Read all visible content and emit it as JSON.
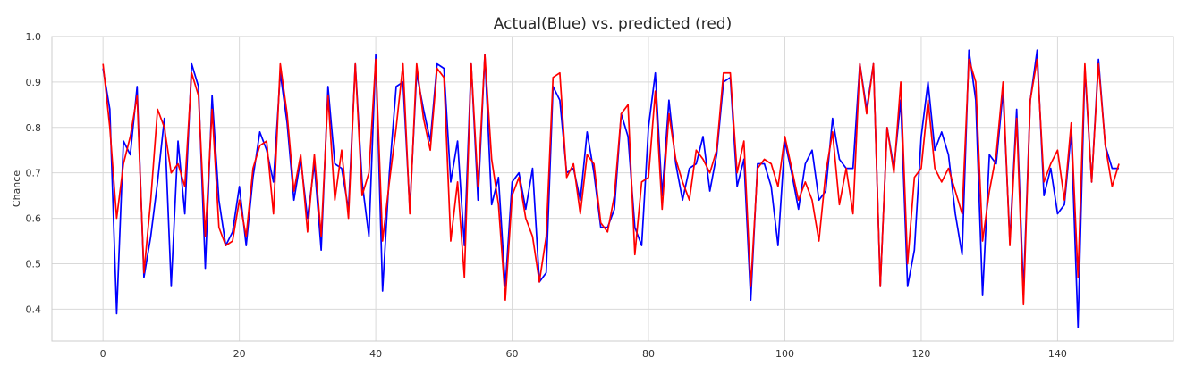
{
  "chart_data": {
    "type": "line",
    "title": "Actual(Blue) vs. predicted (red)",
    "xlabel": "",
    "ylabel": "Chance",
    "xlim": [
      -7.5,
      157
    ],
    "ylim": [
      0.33,
      1.0
    ],
    "xticks": [
      0,
      20,
      40,
      60,
      80,
      100,
      120,
      140
    ],
    "yticks": [
      0.4,
      0.5,
      0.6,
      0.7,
      0.8,
      0.9,
      1.0
    ],
    "ytick_labels": [
      "0.4",
      "0.5",
      "0.6",
      "0.7",
      "0.8",
      "0.9",
      "1.0"
    ],
    "grid": true,
    "series": [
      {
        "color": "#0000ff",
        "values": [
          0.93,
          0.84,
          0.39,
          0.77,
          0.74,
          0.89,
          0.47,
          0.56,
          0.68,
          0.82,
          0.45,
          0.77,
          0.61,
          0.94,
          0.89,
          0.49,
          0.87,
          0.64,
          0.54,
          0.57,
          0.67,
          0.54,
          0.69,
          0.79,
          0.75,
          0.68,
          0.92,
          0.81,
          0.64,
          0.73,
          0.6,
          0.72,
          0.53,
          0.89,
          0.72,
          0.71,
          0.62,
          0.94,
          0.68,
          0.56,
          0.96,
          0.44,
          0.7,
          0.89,
          0.9,
          0.62,
          0.92,
          0.84,
          0.77,
          0.94,
          0.93,
          0.68,
          0.77,
          0.54,
          0.94,
          0.64,
          0.96,
          0.63,
          0.69,
          0.45,
          0.68,
          0.7,
          0.62,
          0.71,
          0.46,
          0.48,
          0.89,
          0.86,
          0.7,
          0.71,
          0.64,
          0.79,
          0.7,
          0.58,
          0.58,
          0.62,
          0.83,
          0.78,
          0.58,
          0.54,
          0.8,
          0.92,
          0.65,
          0.86,
          0.72,
          0.64,
          0.71,
          0.72,
          0.78,
          0.66,
          0.74,
          0.9,
          0.91,
          0.67,
          0.73,
          0.42,
          0.72,
          0.72,
          0.67,
          0.54,
          0.77,
          0.7,
          0.62,
          0.72,
          0.75,
          0.64,
          0.66,
          0.82,
          0.73,
          0.71,
          0.71,
          0.94,
          0.84,
          0.94,
          0.45,
          0.8,
          0.71,
          0.86,
          0.45,
          0.53,
          0.78,
          0.9,
          0.75,
          0.79,
          0.74,
          0.61,
          0.52,
          0.97,
          0.86,
          0.43,
          0.74,
          0.72,
          0.88,
          0.55,
          0.84,
          0.44,
          0.86,
          0.97,
          0.65,
          0.71,
          0.61,
          0.63,
          0.79,
          0.36,
          0.93,
          0.68,
          0.95,
          0.76,
          0.71,
          0.71
        ]
      },
      {
        "color": "#ff0000",
        "values": [
          0.94,
          0.8,
          0.6,
          0.72,
          0.78,
          0.87,
          0.48,
          0.64,
          0.84,
          0.8,
          0.7,
          0.72,
          0.67,
          0.92,
          0.87,
          0.56,
          0.84,
          0.58,
          0.54,
          0.55,
          0.64,
          0.56,
          0.71,
          0.76,
          0.77,
          0.61,
          0.94,
          0.83,
          0.66,
          0.74,
          0.57,
          0.74,
          0.56,
          0.87,
          0.64,
          0.75,
          0.6,
          0.94,
          0.65,
          0.7,
          0.95,
          0.55,
          0.68,
          0.8,
          0.94,
          0.61,
          0.94,
          0.82,
          0.75,
          0.93,
          0.91,
          0.55,
          0.68,
          0.47,
          0.94,
          0.67,
          0.96,
          0.73,
          0.63,
          0.42,
          0.65,
          0.69,
          0.6,
          0.56,
          0.46,
          0.56,
          0.91,
          0.92,
          0.69,
          0.72,
          0.61,
          0.74,
          0.72,
          0.59,
          0.57,
          0.65,
          0.83,
          0.85,
          0.52,
          0.68,
          0.69,
          0.88,
          0.62,
          0.83,
          0.73,
          0.68,
          0.64,
          0.75,
          0.73,
          0.7,
          0.75,
          0.92,
          0.92,
          0.7,
          0.77,
          0.45,
          0.71,
          0.73,
          0.72,
          0.67,
          0.78,
          0.71,
          0.64,
          0.68,
          0.64,
          0.55,
          0.7,
          0.79,
          0.63,
          0.71,
          0.61,
          0.94,
          0.83,
          0.94,
          0.45,
          0.8,
          0.7,
          0.9,
          0.5,
          0.69,
          0.71,
          0.86,
          0.71,
          0.68,
          0.71,
          0.66,
          0.61,
          0.95,
          0.9,
          0.55,
          0.66,
          0.74,
          0.9,
          0.54,
          0.82,
          0.41,
          0.86,
          0.95,
          0.68,
          0.72,
          0.75,
          0.64,
          0.81,
          0.47,
          0.94,
          0.68,
          0.94,
          0.76,
          0.67,
          0.72
        ]
      }
    ]
  }
}
